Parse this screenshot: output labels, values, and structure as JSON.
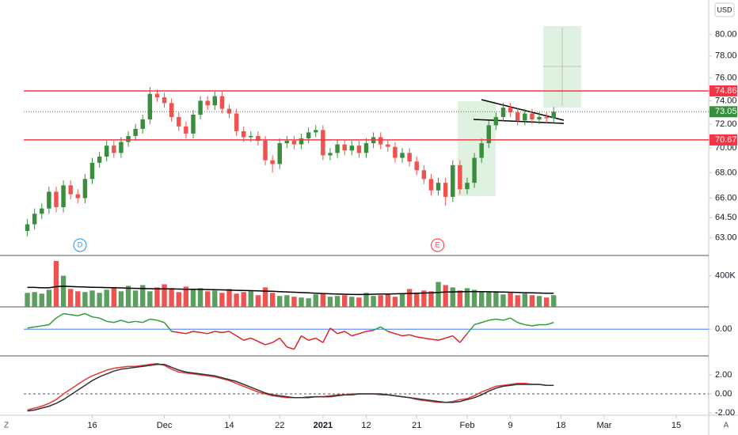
{
  "currency": "USD",
  "corner_labels": [
    "Z",
    "A"
  ],
  "chart_data": [
    {
      "type": "candlestick",
      "up_color": "#388e3c",
      "down_color": "#ef5350",
      "log_scale": true,
      "ylim": [
        61.7,
        83.3
      ],
      "yticks": [
        {
          "value": 63,
          "label": "63.00"
        },
        {
          "value": 64.5,
          "label": "64.50"
        },
        {
          "value": 66,
          "label": "66.00"
        },
        {
          "value": 68,
          "label": "68.00"
        },
        {
          "value": 70,
          "label": "70.00"
        },
        {
          "value": 72,
          "label": "72.00"
        },
        {
          "value": 74,
          "label": "74.00"
        },
        {
          "value": 76,
          "label": "76.00"
        },
        {
          "value": 78,
          "label": "78.00"
        },
        {
          "value": 80,
          "label": "80.00"
        }
      ],
      "xlim": [
        -0.5,
        94.5
      ],
      "xticks": [
        {
          "value": 9,
          "label": "16"
        },
        {
          "value": 19,
          "label": "Dec"
        },
        {
          "value": 28,
          "label": "14"
        },
        {
          "value": 35,
          "label": "22"
        },
        {
          "value": 41,
          "label": "2021"
        },
        {
          "value": 47,
          "label": "12"
        },
        {
          "value": 54,
          "label": "21"
        },
        {
          "value": 61,
          "label": "Feb"
        },
        {
          "value": 67,
          "label": "9"
        },
        {
          "value": 74,
          "label": "18"
        },
        {
          "value": 80,
          "label": "Mar"
        },
        {
          "value": 90,
          "label": "15"
        }
      ],
      "open": [
        63.5,
        64.0,
        64.8,
        65.2,
        66.5,
        65.3,
        67.0,
        66.3,
        66.0,
        67.5,
        68.8,
        69.3,
        70.2,
        69.6,
        70.5,
        71.0,
        71.6,
        72.4,
        74.6,
        74.3,
        73.8,
        72.6,
        71.8,
        71.2,
        72.8,
        74.0,
        73.6,
        74.4,
        73.3,
        72.9,
        71.4,
        70.9,
        71.0,
        70.6,
        69.0,
        68.7,
        70.4,
        70.6,
        70.3,
        70.8,
        71.3,
        71.5,
        69.4,
        69.6,
        70.3,
        69.8,
        70.2,
        69.6,
        70.4,
        70.9,
        70.3,
        70.1,
        69.2,
        69.6,
        68.9,
        68.2,
        67.5,
        66.6,
        67.2,
        66.1,
        68.6,
        66.7,
        67.2,
        69.2,
        70.4,
        71.9,
        72.6,
        73.4,
        73.0,
        72.3,
        72.9,
        72.4,
        72.6,
        72.5
      ],
      "high": [
        64.4,
        65.2,
        65.6,
        66.9,
        66.9,
        67.4,
        67.4,
        66.7,
        67.9,
        69.2,
        69.7,
        70.6,
        70.6,
        70.9,
        71.4,
        72.0,
        72.8,
        75.2,
        75.0,
        74.7,
        74.2,
        73.0,
        72.2,
        73.2,
        74.4,
        74.4,
        74.8,
        74.8,
        73.7,
        73.3,
        71.8,
        71.4,
        71.4,
        71.0,
        69.4,
        70.8,
        71.0,
        71.0,
        71.2,
        71.7,
        71.9,
        71.9,
        70.0,
        70.7,
        70.7,
        70.6,
        70.6,
        70.8,
        71.3,
        71.3,
        70.7,
        70.5,
        70.0,
        70.0,
        69.3,
        68.6,
        67.9,
        67.6,
        67.6,
        69.0,
        69.0,
        67.6,
        69.6,
        70.8,
        72.3,
        73.0,
        73.8,
        73.8,
        73.4,
        73.3,
        73.3,
        73.0,
        73.0,
        73.45
      ],
      "low": [
        63.1,
        63.6,
        64.4,
        64.8,
        64.9,
        64.9,
        65.9,
        65.6,
        65.6,
        67.1,
        68.4,
        68.9,
        69.2,
        69.2,
        70.1,
        70.6,
        71.2,
        72.0,
        73.9,
        73.4,
        72.2,
        71.4,
        70.8,
        70.8,
        72.4,
        73.2,
        73.2,
        72.9,
        72.5,
        71.0,
        70.5,
        70.5,
        70.2,
        68.6,
        68.0,
        68.3,
        70.0,
        69.9,
        69.9,
        70.4,
        70.9,
        69.0,
        69.0,
        69.2,
        69.4,
        69.4,
        69.2,
        69.2,
        70.0,
        69.9,
        69.7,
        68.8,
        68.8,
        68.5,
        67.8,
        67.1,
        66.2,
        66.2,
        65.4,
        65.7,
        66.3,
        66.3,
        66.8,
        68.8,
        70.0,
        71.5,
        72.2,
        72.6,
        71.9,
        71.9,
        72.0,
        72.0,
        72.1,
        72.1
      ],
      "close": [
        64.0,
        64.8,
        65.2,
        66.5,
        65.3,
        67.0,
        66.3,
        66.0,
        67.5,
        68.8,
        69.3,
        70.2,
        69.6,
        70.5,
        71.0,
        71.6,
        72.4,
        74.6,
        74.3,
        73.8,
        72.6,
        71.8,
        71.2,
        72.8,
        74.0,
        73.6,
        74.4,
        73.3,
        72.9,
        71.4,
        70.9,
        71.0,
        70.6,
        69.0,
        68.7,
        70.4,
        70.6,
        70.3,
        70.8,
        71.3,
        71.5,
        69.4,
        69.6,
        70.3,
        69.8,
        70.2,
        69.6,
        70.4,
        70.9,
        70.3,
        70.1,
        69.2,
        69.6,
        68.9,
        68.2,
        67.5,
        66.6,
        67.2,
        66.1,
        68.6,
        66.7,
        67.2,
        69.2,
        70.4,
        71.9,
        72.6,
        73.4,
        73.0,
        72.3,
        72.9,
        72.4,
        72.6,
        72.5,
        73.05
      ],
      "price_lines": [
        74.86,
        70.67
      ],
      "price_line_color": "#f23645",
      "last_price": 73.05,
      "last_price_color": "#388e3c",
      "events": [
        {
          "label": "D",
          "x": 7.3,
          "color": "#2196f3"
        },
        {
          "label": "E",
          "x": 56.9,
          "color": "#f23645"
        }
      ]
    },
    {
      "type": "volume",
      "up_color": "#5b9f5e",
      "down_color": "#ef5350",
      "ylim": [
        0,
        660
      ],
      "yticks": [
        {
          "value": 400,
          "label": "400K"
        }
      ],
      "values": [
        180,
        190,
        170,
        220,
        590,
        400,
        230,
        200,
        190,
        210,
        180,
        220,
        240,
        200,
        270,
        210,
        280,
        200,
        250,
        290,
        240,
        190,
        260,
        220,
        240,
        200,
        210,
        180,
        230,
        170,
        190,
        200,
        150,
        250,
        180,
        140,
        150,
        130,
        120,
        110,
        160,
        170,
        130,
        140,
        150,
        130,
        120,
        180,
        140,
        150,
        160,
        130,
        170,
        230,
        170,
        210,
        200,
        320,
        280,
        250,
        210,
        240,
        220,
        200,
        190,
        200,
        160,
        180,
        150,
        170,
        150,
        140,
        120,
        150
      ],
      "ma": [
        250,
        250,
        245,
        245,
        260,
        265,
        262,
        258,
        255,
        252,
        250,
        248,
        246,
        244,
        240,
        238,
        236,
        234,
        232,
        230,
        230,
        228,
        226,
        225,
        224,
        222,
        220,
        218,
        215,
        212,
        210,
        208,
        205,
        202,
        200,
        196,
        192,
        188,
        184,
        180,
        176,
        172,
        168,
        165,
        162,
        160,
        158,
        160,
        162,
        164,
        166,
        168,
        170,
        172,
        175,
        178,
        180,
        185,
        190,
        192,
        194,
        195,
        196,
        196,
        194,
        192,
        190,
        188,
        185,
        182,
        180,
        178,
        176,
        175
      ],
      "ma_color": "#000000"
    },
    {
      "type": "oscillator",
      "ylim": [
        -1.2,
        1.0
      ],
      "yticks": [
        {
          "value": 0,
          "label": "0.00"
        }
      ],
      "zero_color": "#2962ff",
      "pos_color": "#2e9e38",
      "neg_color": "#e0202a",
      "values": [
        0.05,
        0.1,
        0.15,
        0.2,
        0.5,
        0.7,
        0.65,
        0.6,
        0.7,
        0.55,
        0.5,
        0.35,
        0.3,
        0.4,
        0.3,
        0.35,
        0.3,
        0.45,
        0.4,
        0.3,
        -0.1,
        -0.15,
        -0.2,
        -0.1,
        -0.15,
        -0.2,
        -0.1,
        -0.15,
        -0.1,
        -0.3,
        -0.5,
        -0.4,
        -0.55,
        -0.7,
        -0.6,
        -0.4,
        -0.8,
        -0.9,
        -0.3,
        -0.5,
        -0.4,
        -0.6,
        0.05,
        -0.2,
        -0.1,
        -0.3,
        -0.2,
        -0.1,
        -0.05,
        0.1,
        -0.1,
        -0.2,
        -0.3,
        -0.25,
        -0.35,
        -0.4,
        -0.45,
        -0.5,
        -0.4,
        -0.3,
        -0.6,
        -0.2,
        0.2,
        0.3,
        0.4,
        0.45,
        0.4,
        0.5,
        0.3,
        0.2,
        0.15,
        0.2,
        0.2,
        0.3
      ]
    },
    {
      "type": "line",
      "ylim": [
        -2.25,
        4.0
      ],
      "yticks": [
        {
          "value": 2,
          "label": "2.00"
        },
        {
          "value": 0,
          "label": "0.00"
        },
        {
          "value": -2,
          "label": "-2.00"
        }
      ],
      "zero_line": true,
      "series": [
        {
          "color": "#e53935",
          "values": [
            -1.7,
            -1.5,
            -1.3,
            -1.0,
            -0.6,
            0.0,
            0.5,
            1.0,
            1.5,
            1.9,
            2.2,
            2.5,
            2.7,
            2.8,
            2.9,
            2.9,
            3.0,
            3.1,
            3.2,
            3.0,
            2.6,
            2.3,
            2.2,
            2.1,
            2.0,
            1.9,
            1.8,
            1.6,
            1.4,
            1.1,
            0.8,
            0.5,
            0.2,
            0.0,
            -0.2,
            -0.3,
            -0.4,
            -0.4,
            -0.4,
            -0.3,
            -0.3,
            -0.3,
            -0.2,
            -0.1,
            -0.1,
            0.0,
            0.0,
            0.0,
            0.0,
            -0.1,
            -0.1,
            -0.2,
            -0.3,
            -0.4,
            -0.6,
            -0.7,
            -0.8,
            -0.9,
            -0.9,
            -0.8,
            -0.6,
            -0.5,
            -0.2,
            0.2,
            0.5,
            0.8,
            0.9,
            1.0,
            1.1,
            1.1,
            1.0,
            1.0,
            0.9,
            0.9
          ]
        },
        {
          "color": "#333333",
          "values": [
            -1.8,
            -1.7,
            -1.5,
            -1.3,
            -1.0,
            -0.6,
            -0.1,
            0.4,
            0.9,
            1.4,
            1.8,
            2.1,
            2.4,
            2.6,
            2.7,
            2.8,
            2.9,
            3.0,
            3.1,
            3.1,
            2.8,
            2.5,
            2.3,
            2.2,
            2.1,
            2.0,
            1.9,
            1.7,
            1.5,
            1.3,
            1.0,
            0.7,
            0.4,
            0.1,
            -0.1,
            -0.2,
            -0.3,
            -0.4,
            -0.4,
            -0.4,
            -0.3,
            -0.3,
            -0.3,
            -0.2,
            -0.1,
            -0.1,
            0.0,
            0.0,
            0.0,
            0.0,
            -0.1,
            -0.2,
            -0.3,
            -0.4,
            -0.5,
            -0.6,
            -0.7,
            -0.8,
            -0.9,
            -0.9,
            -0.8,
            -0.6,
            -0.4,
            -0.1,
            0.3,
            0.6,
            0.8,
            0.9,
            1.0,
            1.0,
            1.0,
            1.0,
            0.9,
            0.9
          ]
        }
      ]
    }
  ]
}
